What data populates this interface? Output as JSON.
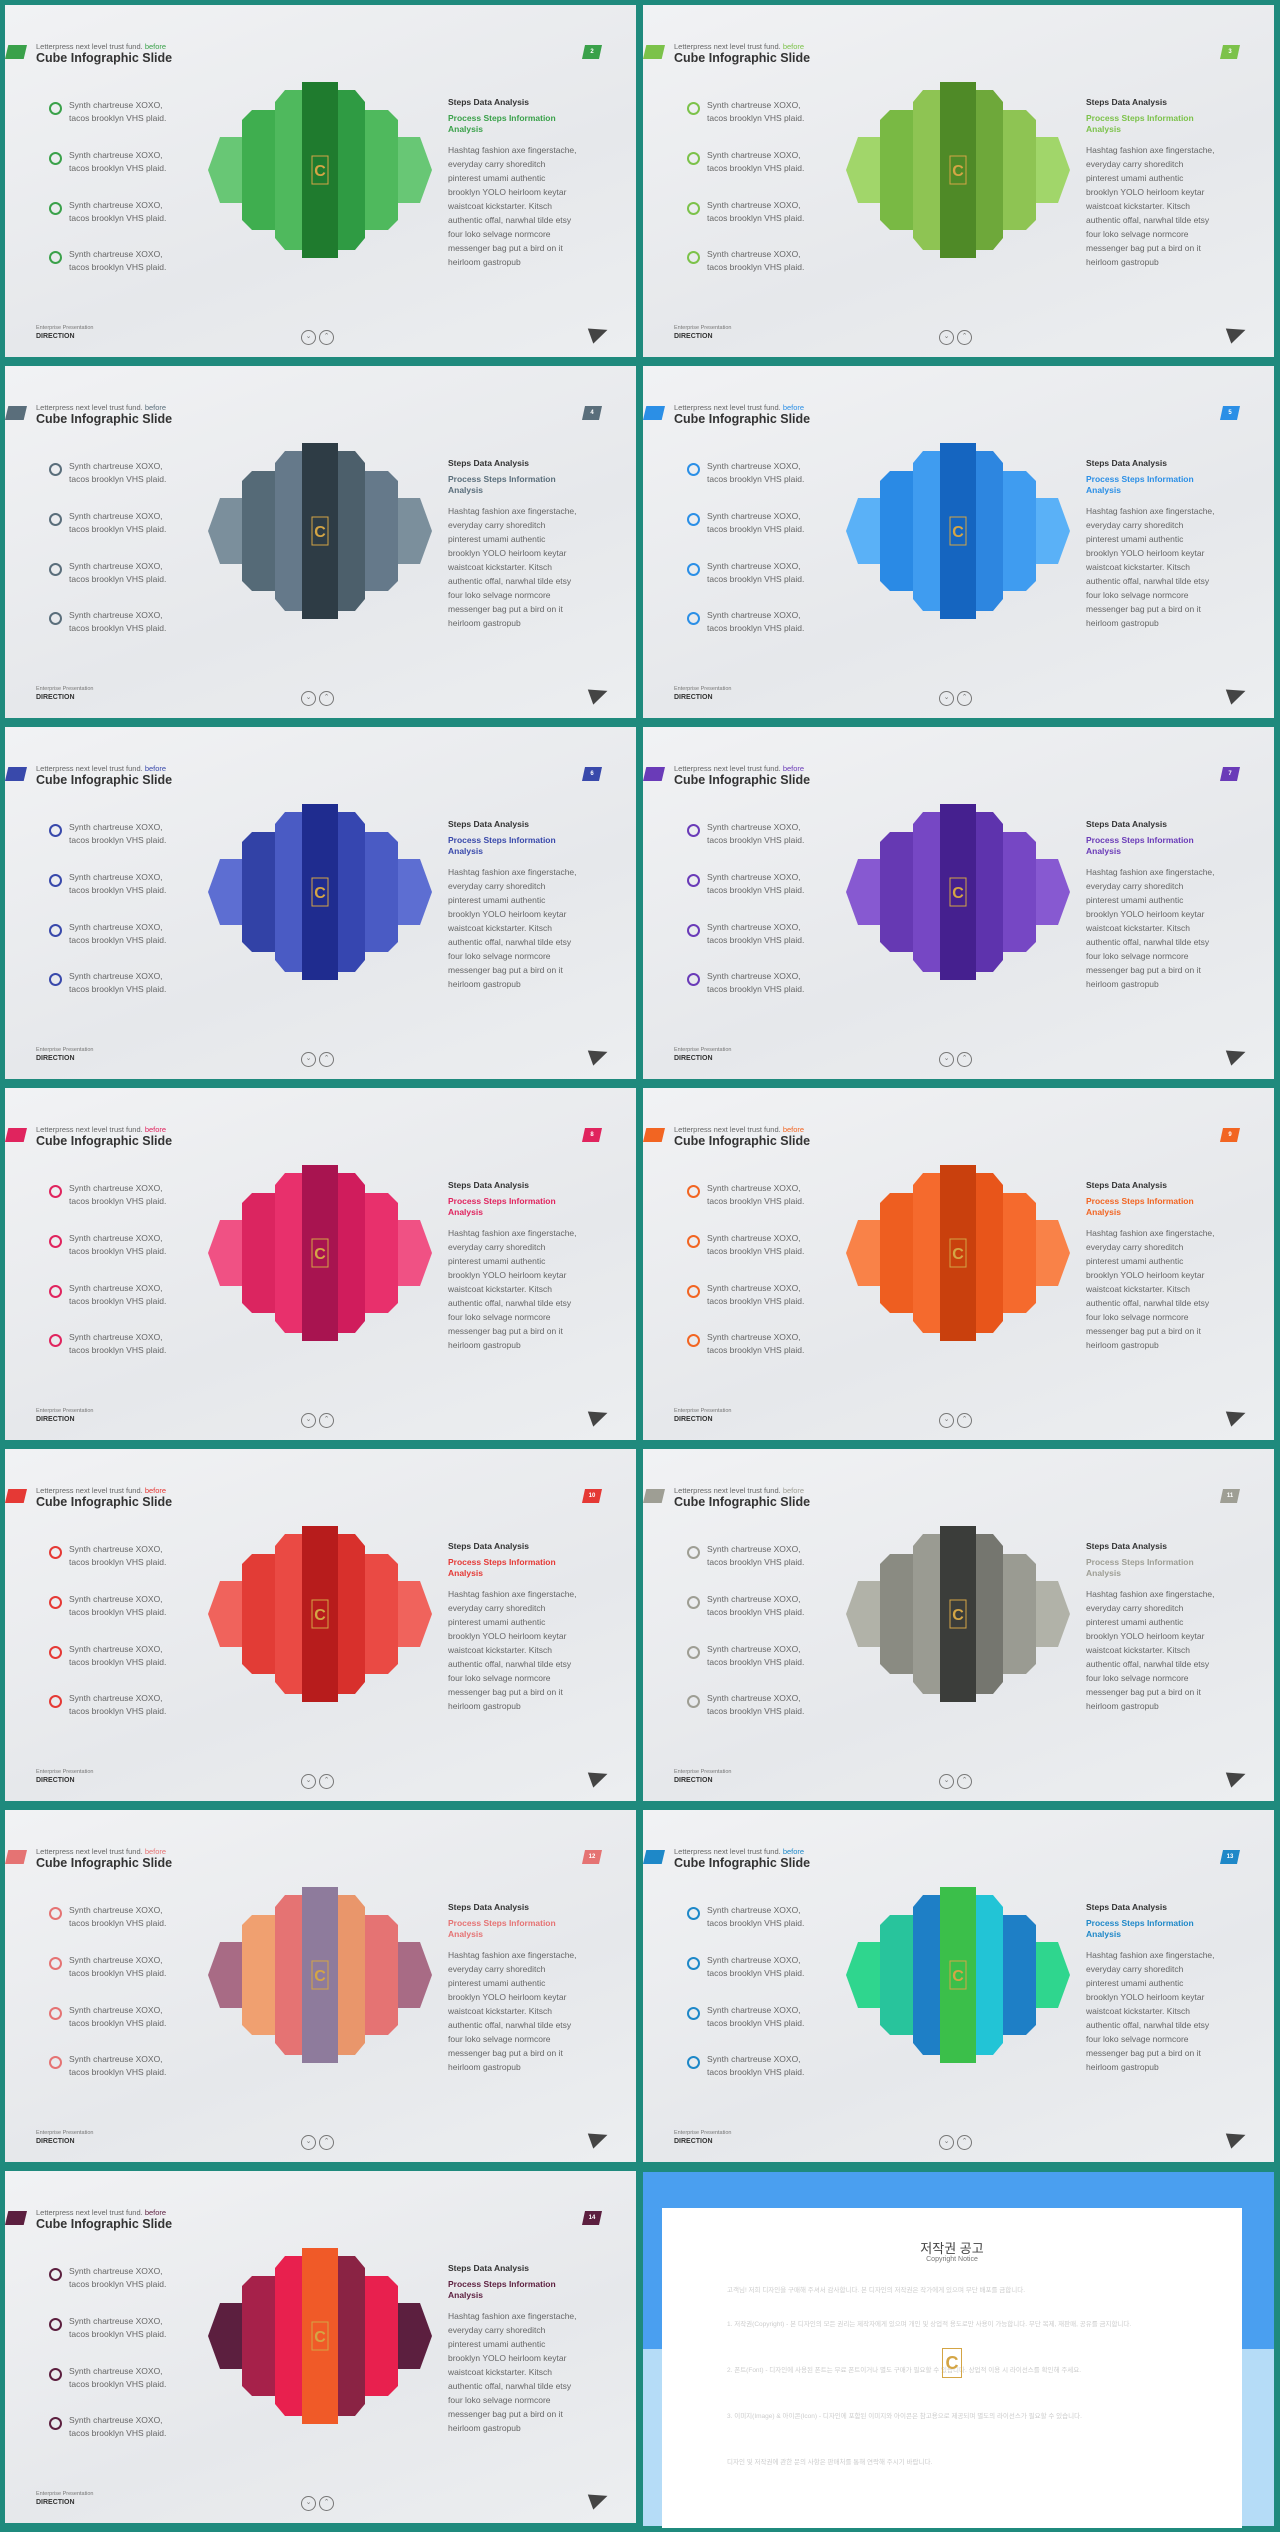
{
  "subtitle_prefix": "Letterpress next level trust fund.",
  "subtitle_accent": "before",
  "slide_title": "Cube Infographic Slide",
  "features": [
    "Synth chartreuse XOXO, tacos brooklyn VHS plaid.",
    "Synth chartreuse XOXO, tacos brooklyn VHS plaid.",
    "Synth chartreuse XOXO, tacos brooklyn VHS plaid.",
    "Synth chartreuse XOXO, tacos brooklyn VHS plaid."
  ],
  "panel": {
    "heading": "Steps Data Analysis",
    "subheading": "Process Steps Information Analysis",
    "body": "Hashtag fashion axe fingerstache, everyday carry shoreditch pinterest umami authentic brooklyn YOLO heirloom keytar waistcoat kickstarter. Kitsch authentic offal, narwhal tilde etsy four loko selvage normcore messenger bag put a bird on it heirloom gastropub"
  },
  "footer": {
    "line1": "Enterprise Presentation",
    "line2": "DIRECTION"
  },
  "slides": [
    {
      "num": "2",
      "accent": "#3aa14a",
      "dark": "#1f7b2e",
      "mid": "#2f9b43",
      "light": "#4fb95d",
      "pale": "#68c775",
      "lighter": "#3fae4f"
    },
    {
      "num": "3",
      "accent": "#7cc24a",
      "dark": "#4f8a27",
      "mid": "#6ea83a",
      "light": "#8ec453",
      "pale": "#a1d66a",
      "lighter": "#79b944"
    },
    {
      "num": "4",
      "accent": "#5a6e7b",
      "dark": "#2e3c45",
      "mid": "#4c5f6b",
      "light": "#65798a",
      "pale": "#7b8f9c",
      "lighter": "#556a77"
    },
    {
      "num": "5",
      "accent": "#2b8fe6",
      "dark": "#1565c0",
      "mid": "#2d86e0",
      "light": "#3f9cf0",
      "pale": "#5ab1f7",
      "lighter": "#2a8ae5"
    },
    {
      "num": "6",
      "accent": "#3949ab",
      "dark": "#1f2c8f",
      "mid": "#3646b0",
      "light": "#4a5bc4",
      "pale": "#5d6ed2",
      "lighter": "#3242a6"
    },
    {
      "num": "7",
      "accent": "#6a3bb8",
      "dark": "#45208f",
      "mid": "#5e33ad",
      "light": "#7647c4",
      "pale": "#8759d1",
      "lighter": "#6639b3"
    },
    {
      "num": "8",
      "accent": "#e0245e",
      "dark": "#a81450",
      "mid": "#d01c5c",
      "light": "#e8306c",
      "pale": "#f05184",
      "lighter": "#db2560"
    },
    {
      "num": "9",
      "accent": "#f26522",
      "dark": "#c9400d",
      "mid": "#e8551a",
      "light": "#f56a2d",
      "pale": "#f98248",
      "lighter": "#ee5e20"
    },
    {
      "num": "10",
      "accent": "#e53935",
      "dark": "#b71c1c",
      "mid": "#d8302c",
      "light": "#ea4a44",
      "pale": "#f0635c",
      "lighter": "#e23c36"
    },
    {
      "num": "11",
      "accent": "#9e9e94",
      "dark": "#3b3d3a",
      "mid": "#75766f",
      "light": "#9a9b92",
      "pale": "#b1b2a8",
      "lighter": "#8a8b82"
    },
    {
      "num": "12",
      "accent": "#e57373",
      "dark": "#8e7b9c",
      "mid": "#e9966b",
      "light": "#e57373",
      "pale": "#a86b85",
      "lighter": "#f0a070"
    },
    {
      "num": "13",
      "accent": "#1e88c8",
      "dark": "#3bbf4a",
      "mid": "#22c4d6",
      "light": "#1e7fc6",
      "pale": "#2fd68e",
      "lighter": "#28c49c"
    },
    {
      "num": "14",
      "accent": "#5c1f3f",
      "dark": "#f05a28",
      "mid": "#8a2344",
      "light": "#e8204e",
      "pale": "#5c1f3f",
      "lighter": "#a6214a"
    }
  ],
  "copyright": {
    "title": "저작권 공고",
    "subtitle": "Copyright Notice",
    "p1": "고객님! 저희 디자인을 구매해 주셔서 감사합니다. 본 디자인의 저작권은 작가에게 있으며 무단 배포를 금합니다.",
    "p2": "1. 저작권(Copyright) - 본 디자인의 모든 권리는 제작자에게 있으며 개인 및 상업적 용도로만 사용이 가능합니다. 무단 복제, 재판매, 공유를 금지합니다.",
    "p3": "2. 폰트(Font) - 디자인에 사용된 폰트는 무료 폰트이거나 별도 구매가 필요할 수 있습니다. 상업적 이용 시 라이선스를 확인해 주세요.",
    "p4": "3. 이미지(Image) & 아이콘(Icon) - 디자인에 포함된 이미지와 아이콘은 참고용으로 제공되며 별도의 라이선스가 필요할 수 있습니다.",
    "p5": "디자인 및 저작권에 관한 문의 사항은 판매처를 통해 연락해 주시기 바랍니다."
  }
}
